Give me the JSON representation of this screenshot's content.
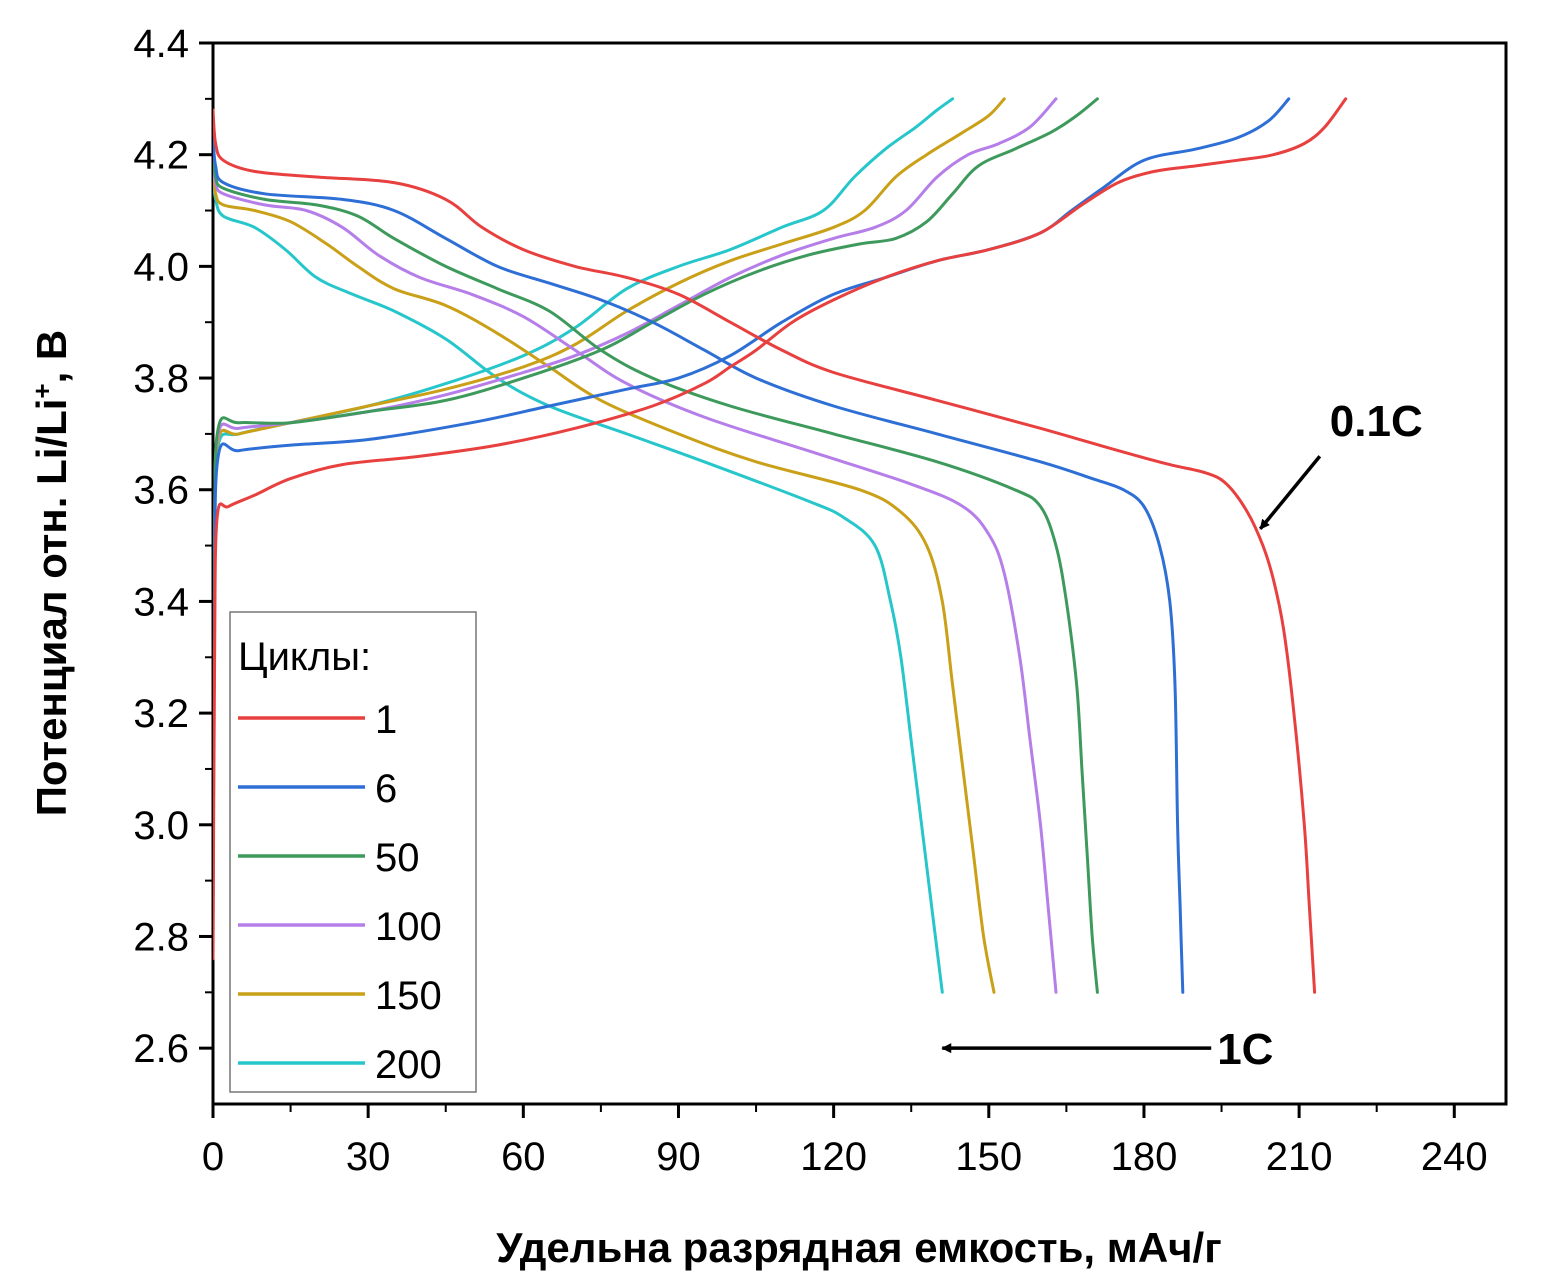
{
  "chart_data": {
    "type": "line",
    "xlabel": "Удельна разрядная емкость, мАч/г",
    "ylabel_main": "Потенциал отн. Li/Li",
    "ylabel_sup": "+",
    "ylabel_tail": ", В",
    "xlim": [
      0,
      250
    ],
    "ylim": [
      2.5,
      4.4
    ],
    "xticks": [
      0,
      30,
      60,
      90,
      120,
      150,
      180,
      210,
      240
    ],
    "xtick_labels": [
      "0",
      "30",
      "60",
      "90",
      "120",
      "150",
      "180",
      "210",
      "240"
    ],
    "yticks": [
      2.6,
      2.8,
      3.0,
      3.2,
      3.4,
      3.6,
      3.8,
      4.0,
      4.2,
      4.4
    ],
    "ytick_labels": [
      "2.6",
      "2.8",
      "3.0",
      "3.2",
      "3.4",
      "3.6",
      "3.8",
      "4.0",
      "4.2",
      "4.4"
    ],
    "grid": false,
    "legend": {
      "title": "Циклы:",
      "position": "bottom-left"
    },
    "annotations": [
      {
        "text": "0.1C",
        "arrow_from": [
          214,
          3.66
        ],
        "arrow_to": [
          202.5,
          3.53
        ]
      },
      {
        "text": "1C",
        "arrow_from": [
          193,
          2.6
        ],
        "arrow_to": [
          141,
          2.6
        ]
      }
    ],
    "series": [
      {
        "name": "1",
        "color": "#e8403f",
        "charge": [
          [
            0,
            2.76
          ],
          [
            0.3,
            3.3
          ],
          [
            0.8,
            3.55
          ],
          [
            3,
            3.57
          ],
          [
            8,
            3.59
          ],
          [
            15,
            3.62
          ],
          [
            25,
            3.645
          ],
          [
            40,
            3.66
          ],
          [
            55,
            3.68
          ],
          [
            70,
            3.71
          ],
          [
            85,
            3.75
          ],
          [
            95,
            3.79
          ],
          [
            100,
            3.82
          ],
          [
            105,
            3.85
          ],
          [
            112,
            3.9
          ],
          [
            120,
            3.94
          ],
          [
            130,
            3.98
          ],
          [
            140,
            4.01
          ],
          [
            150,
            4.03
          ],
          [
            160,
            4.06
          ],
          [
            168,
            4.11
          ],
          [
            175,
            4.15
          ],
          [
            182,
            4.17
          ],
          [
            190,
            4.18
          ],
          [
            198,
            4.19
          ],
          [
            205,
            4.2
          ],
          [
            211,
            4.22
          ],
          [
            215,
            4.25
          ],
          [
            219,
            4.3
          ]
        ],
        "discharge": [
          [
            0,
            4.28
          ],
          [
            0.5,
            4.22
          ],
          [
            2,
            4.19
          ],
          [
            8,
            4.17
          ],
          [
            20,
            4.16
          ],
          [
            35,
            4.15
          ],
          [
            45,
            4.12
          ],
          [
            52,
            4.07
          ],
          [
            60,
            4.03
          ],
          [
            70,
            4.0
          ],
          [
            80,
            3.98
          ],
          [
            90,
            3.95
          ],
          [
            100,
            3.9
          ],
          [
            110,
            3.85
          ],
          [
            120,
            3.81
          ],
          [
            140,
            3.76
          ],
          [
            160,
            3.71
          ],
          [
            175,
            3.67
          ],
          [
            185,
            3.645
          ],
          [
            192,
            3.63
          ],
          [
            196,
            3.61
          ],
          [
            200,
            3.56
          ],
          [
            203,
            3.5
          ],
          [
            205,
            3.44
          ],
          [
            207,
            3.35
          ],
          [
            209,
            3.2
          ],
          [
            211,
            3.0
          ],
          [
            212,
            2.85
          ],
          [
            213,
            2.7
          ]
        ]
      },
      {
        "name": "6",
        "color": "#2e6fd6",
        "charge": [
          [
            0,
            2.8
          ],
          [
            0.3,
            3.4
          ],
          [
            1,
            3.66
          ],
          [
            5,
            3.67
          ],
          [
            15,
            3.68
          ],
          [
            30,
            3.69
          ],
          [
            50,
            3.72
          ],
          [
            65,
            3.75
          ],
          [
            80,
            3.78
          ],
          [
            90,
            3.8
          ],
          [
            100,
            3.84
          ],
          [
            110,
            3.9
          ],
          [
            120,
            3.95
          ],
          [
            130,
            3.98
          ],
          [
            140,
            4.01
          ],
          [
            150,
            4.03
          ],
          [
            160,
            4.06
          ],
          [
            166,
            4.1
          ],
          [
            172,
            4.14
          ],
          [
            180,
            4.19
          ],
          [
            190,
            4.21
          ],
          [
            198,
            4.23
          ],
          [
            204,
            4.26
          ],
          [
            208,
            4.3
          ]
        ],
        "discharge": [
          [
            0,
            4.23
          ],
          [
            0.5,
            4.18
          ],
          [
            2,
            4.15
          ],
          [
            10,
            4.13
          ],
          [
            25,
            4.12
          ],
          [
            35,
            4.1
          ],
          [
            45,
            4.05
          ],
          [
            55,
            4.0
          ],
          [
            65,
            3.97
          ],
          [
            75,
            3.94
          ],
          [
            85,
            3.9
          ],
          [
            95,
            3.85
          ],
          [
            105,
            3.8
          ],
          [
            120,
            3.75
          ],
          [
            140,
            3.7
          ],
          [
            160,
            3.65
          ],
          [
            170,
            3.62
          ],
          [
            176,
            3.6
          ],
          [
            180,
            3.57
          ],
          [
            183,
            3.5
          ],
          [
            185,
            3.4
          ],
          [
            186,
            3.25
          ],
          [
            186.5,
            3.0
          ],
          [
            187,
            2.85
          ],
          [
            187.5,
            2.7
          ]
        ]
      },
      {
        "name": "50",
        "color": "#3e9a5c",
        "charge": [
          [
            0,
            2.9
          ],
          [
            0.3,
            3.5
          ],
          [
            1,
            3.71
          ],
          [
            5,
            3.72
          ],
          [
            15,
            3.72
          ],
          [
            30,
            3.74
          ],
          [
            45,
            3.76
          ],
          [
            60,
            3.8
          ],
          [
            75,
            3.85
          ],
          [
            85,
            3.9
          ],
          [
            95,
            3.95
          ],
          [
            105,
            3.99
          ],
          [
            115,
            4.02
          ],
          [
            125,
            4.04
          ],
          [
            132,
            4.05
          ],
          [
            138,
            4.08
          ],
          [
            143,
            4.13
          ],
          [
            148,
            4.18
          ],
          [
            155,
            4.21
          ],
          [
            162,
            4.24
          ],
          [
            167,
            4.27
          ],
          [
            171,
            4.3
          ]
        ],
        "discharge": [
          [
            0,
            4.2
          ],
          [
            0.5,
            4.16
          ],
          [
            2,
            4.14
          ],
          [
            10,
            4.12
          ],
          [
            20,
            4.11
          ],
          [
            28,
            4.09
          ],
          [
            35,
            4.05
          ],
          [
            45,
            4.0
          ],
          [
            55,
            3.96
          ],
          [
            65,
            3.92
          ],
          [
            75,
            3.85
          ],
          [
            85,
            3.8
          ],
          [
            100,
            3.75
          ],
          [
            120,
            3.7
          ],
          [
            140,
            3.65
          ],
          [
            155,
            3.6
          ],
          [
            160,
            3.57
          ],
          [
            163,
            3.5
          ],
          [
            165,
            3.4
          ],
          [
            167,
            3.25
          ],
          [
            168,
            3.1
          ],
          [
            169,
            2.95
          ],
          [
            170,
            2.8
          ],
          [
            171,
            2.7
          ]
        ]
      },
      {
        "name": "100",
        "color": "#b57ee8",
        "charge": [
          [
            0,
            2.92
          ],
          [
            0.3,
            3.5
          ],
          [
            1,
            3.7
          ],
          [
            5,
            3.71
          ],
          [
            15,
            3.72
          ],
          [
            30,
            3.74
          ],
          [
            45,
            3.77
          ],
          [
            60,
            3.81
          ],
          [
            70,
            3.84
          ],
          [
            80,
            3.88
          ],
          [
            90,
            3.93
          ],
          [
            100,
            3.98
          ],
          [
            110,
            4.02
          ],
          [
            120,
            4.05
          ],
          [
            128,
            4.07
          ],
          [
            134,
            4.1
          ],
          [
            140,
            4.16
          ],
          [
            146,
            4.2
          ],
          [
            152,
            4.22
          ],
          [
            158,
            4.25
          ],
          [
            163,
            4.3
          ]
        ],
        "discharge": [
          [
            0,
            4.19
          ],
          [
            0.5,
            4.15
          ],
          [
            2,
            4.13
          ],
          [
            10,
            4.11
          ],
          [
            18,
            4.1
          ],
          [
            25,
            4.07
          ],
          [
            32,
            4.02
          ],
          [
            40,
            3.98
          ],
          [
            50,
            3.95
          ],
          [
            60,
            3.91
          ],
          [
            70,
            3.85
          ],
          [
            80,
            3.79
          ],
          [
            95,
            3.73
          ],
          [
            115,
            3.67
          ],
          [
            135,
            3.61
          ],
          [
            145,
            3.57
          ],
          [
            150,
            3.52
          ],
          [
            153,
            3.45
          ],
          [
            156,
            3.3
          ],
          [
            158,
            3.15
          ],
          [
            160,
            3.0
          ],
          [
            161.5,
            2.85
          ],
          [
            163,
            2.7
          ]
        ]
      },
      {
        "name": "150",
        "color": "#c9a018",
        "charge": [
          [
            0,
            2.95
          ],
          [
            0.3,
            3.5
          ],
          [
            1,
            3.69
          ],
          [
            5,
            3.7
          ],
          [
            15,
            3.72
          ],
          [
            30,
            3.75
          ],
          [
            45,
            3.78
          ],
          [
            60,
            3.82
          ],
          [
            70,
            3.86
          ],
          [
            80,
            3.92
          ],
          [
            90,
            3.97
          ],
          [
            100,
            4.01
          ],
          [
            110,
            4.04
          ],
          [
            120,
            4.07
          ],
          [
            126,
            4.1
          ],
          [
            132,
            4.16
          ],
          [
            138,
            4.2
          ],
          [
            145,
            4.24
          ],
          [
            150,
            4.27
          ],
          [
            153,
            4.3
          ]
        ],
        "discharge": [
          [
            0,
            4.18
          ],
          [
            0.5,
            4.13
          ],
          [
            2,
            4.11
          ],
          [
            8,
            4.1
          ],
          [
            15,
            4.08
          ],
          [
            22,
            4.04
          ],
          [
            28,
            4.0
          ],
          [
            35,
            3.96
          ],
          [
            45,
            3.93
          ],
          [
            55,
            3.88
          ],
          [
            65,
            3.82
          ],
          [
            75,
            3.76
          ],
          [
            90,
            3.7
          ],
          [
            105,
            3.65
          ],
          [
            125,
            3.6
          ],
          [
            133,
            3.56
          ],
          [
            138,
            3.5
          ],
          [
            141,
            3.4
          ],
          [
            143,
            3.25
          ],
          [
            145,
            3.1
          ],
          [
            147,
            2.95
          ],
          [
            149,
            2.8
          ],
          [
            151,
            2.7
          ]
        ]
      },
      {
        "name": "200",
        "color": "#26c6cb",
        "charge": [
          [
            0,
            2.95
          ],
          [
            0.3,
            3.5
          ],
          [
            1,
            3.68
          ],
          [
            5,
            3.7
          ],
          [
            15,
            3.72
          ],
          [
            30,
            3.75
          ],
          [
            45,
            3.79
          ],
          [
            60,
            3.84
          ],
          [
            70,
            3.89
          ],
          [
            80,
            3.96
          ],
          [
            90,
            4.0
          ],
          [
            100,
            4.03
          ],
          [
            110,
            4.07
          ],
          [
            118,
            4.1
          ],
          [
            124,
            4.16
          ],
          [
            130,
            4.21
          ],
          [
            136,
            4.25
          ],
          [
            140,
            4.28
          ],
          [
            143,
            4.3
          ]
        ],
        "discharge": [
          [
            0,
            4.16
          ],
          [
            0.5,
            4.12
          ],
          [
            2,
            4.09
          ],
          [
            8,
            4.07
          ],
          [
            14,
            4.03
          ],
          [
            20,
            3.98
          ],
          [
            27,
            3.95
          ],
          [
            35,
            3.92
          ],
          [
            45,
            3.87
          ],
          [
            55,
            3.8
          ],
          [
            65,
            3.75
          ],
          [
            80,
            3.7
          ],
          [
            95,
            3.65
          ],
          [
            115,
            3.58
          ],
          [
            122,
            3.55
          ],
          [
            128,
            3.5
          ],
          [
            131,
            3.4
          ],
          [
            133,
            3.3
          ],
          [
            135,
            3.15
          ],
          [
            137,
            3.0
          ],
          [
            139,
            2.85
          ],
          [
            141,
            2.7
          ]
        ]
      }
    ]
  }
}
